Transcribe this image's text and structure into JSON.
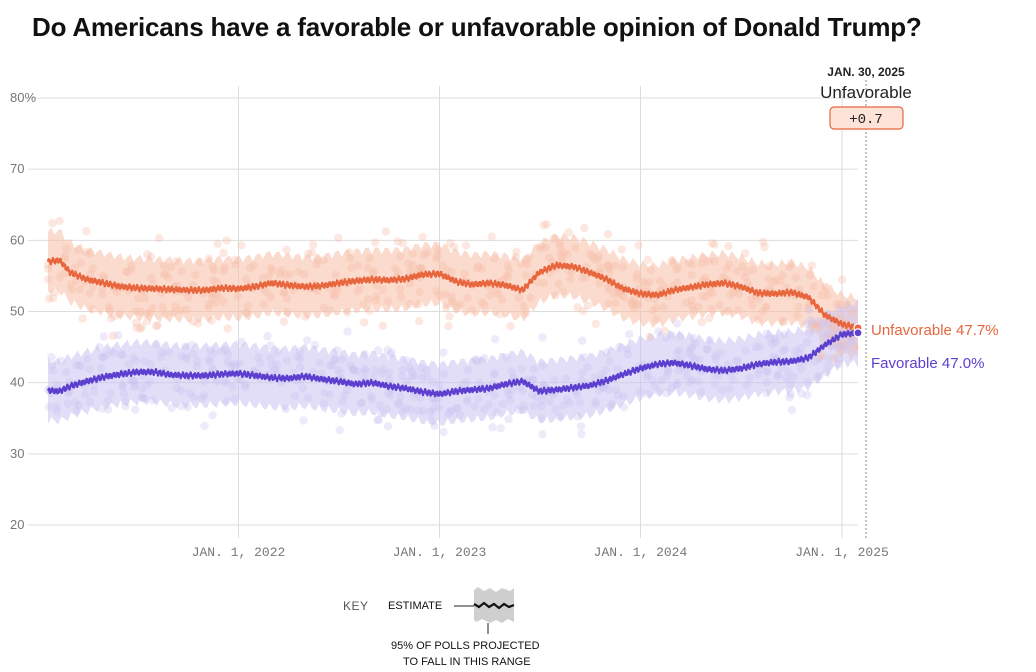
{
  "title": "Do Americans have a favorable or unfavorable opinion of Donald Trump?",
  "colors": {
    "unfavorable": "#e8663d",
    "favorable": "#5c3fcf",
    "unfavorable_band": "#f7bea6",
    "favorable_band": "#cbc2f2",
    "grid": "#dddddd",
    "axis_text": "#777777"
  },
  "tooltip": {
    "date": "JAN. 30, 2025",
    "label": "Unfavorable",
    "value": "+0.7"
  },
  "end_labels": {
    "unfavorable": "Unfavorable 47.7%",
    "favorable": "Favorable 47.0%"
  },
  "key": {
    "label": "KEY",
    "estimate": "ESTIMATE",
    "range_note_1": "95% OF POLLS PROJECTED",
    "range_note_2": "TO FALL IN THIS RANGE"
  },
  "chart_data": {
    "type": "line",
    "x_start": "2021-01-20",
    "x_end": "2025-01-30",
    "ylim": [
      20,
      80
    ],
    "y_ticks": [
      {
        "value": 80,
        "label": "80%"
      },
      {
        "value": 70,
        "label": "70"
      },
      {
        "value": 60,
        "label": "60"
      },
      {
        "value": 50,
        "label": "50"
      },
      {
        "value": 40,
        "label": "40"
      },
      {
        "value": 30,
        "label": "30"
      },
      {
        "value": 20,
        "label": "20"
      }
    ],
    "x_ticks": [
      {
        "date": "2022-01-01",
        "label": "JAN. 1, 2022"
      },
      {
        "date": "2023-01-01",
        "label": "JAN. 1, 2023"
      },
      {
        "date": "2024-01-01",
        "label": "JAN. 1, 2024"
      },
      {
        "date": "2025-01-01",
        "label": "JAN. 1, 2025"
      }
    ],
    "series": [
      {
        "name": "Unfavorable",
        "points": [
          [
            "2021-01-20",
            57.0
          ],
          [
            "2021-02-10",
            57.2
          ],
          [
            "2021-03-01",
            55.5
          ],
          [
            "2021-04-01",
            54.5
          ],
          [
            "2021-05-01",
            54.0
          ],
          [
            "2021-06-01",
            53.5
          ],
          [
            "2021-07-01",
            53.3
          ],
          [
            "2021-08-01",
            53.2
          ],
          [
            "2021-09-01",
            53.1
          ],
          [
            "2021-10-01",
            53.0
          ],
          [
            "2021-11-01",
            53.0
          ],
          [
            "2021-12-01",
            53.3
          ],
          [
            "2022-01-01",
            53.2
          ],
          [
            "2022-02-01",
            53.5
          ],
          [
            "2022-03-01",
            54.0
          ],
          [
            "2022-04-01",
            53.7
          ],
          [
            "2022-05-01",
            53.5
          ],
          [
            "2022-06-01",
            53.6
          ],
          [
            "2022-07-01",
            54.0
          ],
          [
            "2022-08-01",
            54.3
          ],
          [
            "2022-09-01",
            54.5
          ],
          [
            "2022-10-01",
            54.4
          ],
          [
            "2022-11-01",
            54.6
          ],
          [
            "2022-12-01",
            55.2
          ],
          [
            "2023-01-01",
            55.3
          ],
          [
            "2023-02-01",
            54.2
          ],
          [
            "2023-03-01",
            53.8
          ],
          [
            "2023-04-01",
            54.0
          ],
          [
            "2023-05-01",
            53.7
          ],
          [
            "2023-06-01",
            53.0
          ],
          [
            "2023-07-01",
            55.5
          ],
          [
            "2023-08-01",
            56.5
          ],
          [
            "2023-09-01",
            56.3
          ],
          [
            "2023-10-01",
            55.5
          ],
          [
            "2023-11-01",
            54.5
          ],
          [
            "2023-12-01",
            53.2
          ],
          [
            "2024-01-01",
            52.5
          ],
          [
            "2024-02-01",
            52.3
          ],
          [
            "2024-03-01",
            53.0
          ],
          [
            "2024-04-01",
            53.4
          ],
          [
            "2024-05-01",
            53.8
          ],
          [
            "2024-06-01",
            54.0
          ],
          [
            "2024-07-01",
            53.5
          ],
          [
            "2024-08-01",
            52.6
          ],
          [
            "2024-09-01",
            52.5
          ],
          [
            "2024-10-01",
            52.7
          ],
          [
            "2024-11-01",
            52.0
          ],
          [
            "2024-12-01",
            49.5
          ],
          [
            "2025-01-01",
            48.2
          ],
          [
            "2025-01-30",
            47.7
          ]
        ]
      },
      {
        "name": "Favorable",
        "points": [
          [
            "2021-01-20",
            38.9
          ],
          [
            "2021-02-10",
            38.8
          ],
          [
            "2021-03-01",
            39.5
          ],
          [
            "2021-04-01",
            40.2
          ],
          [
            "2021-05-01",
            40.8
          ],
          [
            "2021-06-01",
            41.2
          ],
          [
            "2021-07-01",
            41.5
          ],
          [
            "2021-08-01",
            41.5
          ],
          [
            "2021-09-01",
            41.1
          ],
          [
            "2021-10-01",
            41.0
          ],
          [
            "2021-11-01",
            41.0
          ],
          [
            "2021-12-01",
            41.2
          ],
          [
            "2022-01-01",
            41.3
          ],
          [
            "2022-02-01",
            41.0
          ],
          [
            "2022-03-01",
            40.7
          ],
          [
            "2022-04-01",
            40.6
          ],
          [
            "2022-05-01",
            40.9
          ],
          [
            "2022-06-01",
            40.5
          ],
          [
            "2022-07-01",
            40.2
          ],
          [
            "2022-08-01",
            39.8
          ],
          [
            "2022-09-01",
            40.0
          ],
          [
            "2022-10-01",
            39.5
          ],
          [
            "2022-11-01",
            39.2
          ],
          [
            "2022-12-01",
            38.7
          ],
          [
            "2023-01-01",
            38.4
          ],
          [
            "2023-02-01",
            38.8
          ],
          [
            "2023-03-01",
            39.0
          ],
          [
            "2023-04-01",
            39.2
          ],
          [
            "2023-05-01",
            39.8
          ],
          [
            "2023-06-01",
            40.2
          ],
          [
            "2023-07-01",
            38.8
          ],
          [
            "2023-08-01",
            39.0
          ],
          [
            "2023-09-01",
            39.3
          ],
          [
            "2023-10-01",
            39.6
          ],
          [
            "2023-11-01",
            40.3
          ],
          [
            "2023-12-01",
            41.2
          ],
          [
            "2024-01-01",
            42.0
          ],
          [
            "2024-02-01",
            42.6
          ],
          [
            "2024-03-01",
            42.8
          ],
          [
            "2024-04-01",
            42.4
          ],
          [
            "2024-05-01",
            41.9
          ],
          [
            "2024-06-01",
            41.7
          ],
          [
            "2024-07-01",
            42.0
          ],
          [
            "2024-08-01",
            42.6
          ],
          [
            "2024-09-01",
            42.9
          ],
          [
            "2024-10-01",
            43.0
          ],
          [
            "2024-11-01",
            43.5
          ],
          [
            "2024-12-01",
            45.3
          ],
          [
            "2025-01-01",
            46.8
          ],
          [
            "2025-01-30",
            47.0
          ]
        ]
      }
    ]
  }
}
